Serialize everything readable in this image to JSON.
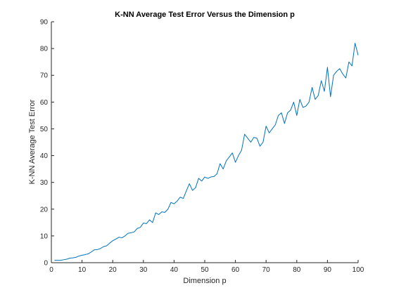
{
  "chart_data": {
    "type": "line",
    "title": "K-NN Average Test Error Versus the Dimension p",
    "xlabel": "Dimension p",
    "ylabel": "K-NN Average Test Error",
    "xlim": [
      0,
      100
    ],
    "ylim": [
      0,
      90
    ],
    "xticks": [
      0,
      10,
      20,
      30,
      40,
      50,
      60,
      70,
      80,
      90,
      100
    ],
    "yticks": [
      0,
      10,
      20,
      30,
      40,
      50,
      60,
      70,
      80,
      90
    ],
    "grid": false,
    "line_color": "#0072BD",
    "series": [
      {
        "x": [
          1,
          2,
          3,
          4,
          5,
          6,
          7,
          8,
          9,
          10,
          11,
          12,
          13,
          14,
          15,
          16,
          17,
          18,
          19,
          20,
          21,
          22,
          23,
          24,
          25,
          26,
          27,
          28,
          29,
          30,
          31,
          32,
          33,
          34,
          35,
          36,
          37,
          38,
          39,
          40,
          41,
          42,
          43,
          44,
          45,
          46,
          47,
          48,
          49,
          50,
          51,
          52,
          53,
          54,
          55,
          56,
          57,
          58,
          59,
          60,
          61,
          62,
          63,
          64,
          65,
          66,
          67,
          68,
          69,
          70,
          71,
          72,
          73,
          74,
          75,
          76,
          77,
          78,
          79,
          80,
          81,
          82,
          83,
          84,
          85,
          86,
          87,
          88,
          89,
          90,
          91,
          92,
          93,
          94,
          95,
          96,
          97,
          98,
          99,
          100
        ],
        "values": [
          0.9,
          0.9,
          0.9,
          1.1,
          1.3,
          1.7,
          1.8,
          2.0,
          2.5,
          2.8,
          3.0,
          3.3,
          4.0,
          4.8,
          4.9,
          5.3,
          6.0,
          6.3,
          7.3,
          8.2,
          8.8,
          9.5,
          9.3,
          10.0,
          11.0,
          11.2,
          11.5,
          12.8,
          13.2,
          14.8,
          14.6,
          16.0,
          15.0,
          18.6,
          18.0,
          19.0,
          18.8,
          20.0,
          22.5,
          22.0,
          23.0,
          24.5,
          24.0,
          26.8,
          29.5,
          27.0,
          28.0,
          31.5,
          30.5,
          32.0,
          31.5,
          32.0,
          32.2,
          33.2,
          37.0,
          35.0,
          38.0,
          39.5,
          41.0,
          37.5,
          40.0,
          42.0,
          48.0,
          46.5,
          45.0,
          46.8,
          46.5,
          43.5,
          45.0,
          51.0,
          48.5,
          50.0,
          51.5,
          55.0,
          56.0,
          52.0,
          56.0,
          57.0,
          60.0,
          55.0,
          61.0,
          58.0,
          58.5,
          60.0,
          65.5,
          61.0,
          62.5,
          68.0,
          64.0,
          73.0,
          62.0,
          70.0,
          71.5,
          72.5,
          70.5,
          69.0,
          75.0,
          73.5,
          82.0,
          77.5
        ]
      }
    ]
  }
}
